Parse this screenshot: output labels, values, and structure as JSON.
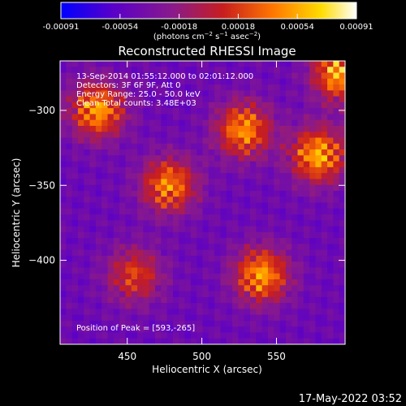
{
  "chart_data": {
    "type": "heatmap",
    "title": "Reconstructed RHESSI Image",
    "xlabel": "Heliocentric X (arcsec)",
    "ylabel": "Heliocentric Y (arcsec)",
    "xlim": [
      405,
      596
    ],
    "ylim": [
      -456,
      -267
    ],
    "xticks": [
      450,
      500,
      550
    ],
    "yticks": [
      -300,
      -350,
      -400
    ],
    "colorbar": {
      "ticks": [
        "-0.00091",
        "-0.00054",
        "-0.00018",
        "0.00018",
        "0.00054",
        "0.00091"
      ],
      "range": [
        -0.00091,
        0.00091
      ],
      "unit_label": "(photons cm^-2 s^-1 asec^-2)",
      "colors": [
        "#0000ff",
        "#5a00c8",
        "#8a1a8a",
        "#c81e1e",
        "#ff7800",
        "#ffdc00",
        "#ffffff"
      ]
    },
    "annotations": [
      "13-Sep-2014 01:55:12.000 to 02:01:12.000",
      "Detectors: 3F 6F 9F, Att 0",
      "Energy Range: 25.0 - 50.0 keV",
      "Clean    Total counts: 3.48E+03"
    ],
    "peak_label": "Position of Peak = [593,-265]",
    "peak": [
      593,
      -265
    ],
    "sources": [
      {
        "x": 430,
        "y": -300,
        "value": 0.0008
      },
      {
        "x": 478,
        "y": -350,
        "value": 0.0007
      },
      {
        "x": 528,
        "y": -313,
        "value": 0.00075
      },
      {
        "x": 578,
        "y": -330,
        "value": 0.00085
      },
      {
        "x": 593,
        "y": -275,
        "value": 0.00091
      },
      {
        "x": 540,
        "y": -410,
        "value": 0.0008
      },
      {
        "x": 455,
        "y": -410,
        "value": 0.0004
      }
    ],
    "grid": false
  },
  "timestamp": "17-May-2022 03:52"
}
